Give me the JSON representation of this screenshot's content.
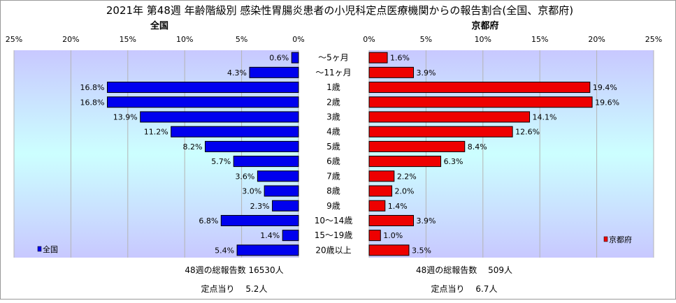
{
  "chart_data": {
    "type": "bar",
    "title": "2021年 第48週 年齢階級別 感染性胃腸炎患者の小児科定点医療機関からの報告割合(全国、京都府)",
    "categories": [
      "～5ヶ月",
      "～11ヶ月",
      "1歳",
      "2歳",
      "3歳",
      "4歳",
      "5歳",
      "6歳",
      "7歳",
      "8歳",
      "9歳",
      "10～14歳",
      "15～19歳",
      "20歳以上"
    ],
    "series": [
      {
        "name": "全国",
        "color": "#0000ee",
        "values": [
          0.6,
          4.3,
          16.8,
          16.8,
          13.9,
          11.2,
          8.2,
          5.7,
          3.6,
          3.0,
          2.3,
          6.8,
          1.4,
          5.4
        ],
        "labels": [
          "0.6%",
          "4.3%",
          "16.8%",
          "16.8%",
          "13.9%",
          "11.2%",
          "8.2%",
          "5.7%",
          "3.6%",
          "3.0%",
          "2.3%",
          "6.8%",
          "1.4%",
          "5.4%"
        ]
      },
      {
        "name": "京都府",
        "color": "#ee0000",
        "values": [
          1.6,
          3.9,
          19.4,
          19.6,
          14.1,
          12.6,
          8.4,
          6.3,
          2.2,
          2.0,
          1.4,
          3.9,
          1.0,
          3.5
        ],
        "labels": [
          "1.6%",
          "3.9%",
          "19.4%",
          "19.6%",
          "14.1%",
          "12.6%",
          "8.4%",
          "6.3%",
          "2.2%",
          "2.0%",
          "1.4%",
          "3.9%",
          "1.0%",
          "3.5%"
        ]
      }
    ],
    "panels": [
      {
        "title": "全国",
        "orientation": "reversed"
      },
      {
        "title": "京都府",
        "orientation": "normal"
      }
    ],
    "xlim": [
      0,
      25
    ],
    "xticks": [
      25,
      20,
      15,
      10,
      5,
      0
    ],
    "xtick_labels_left": [
      "25%",
      "20%",
      "15%",
      "10%",
      "5%",
      "0%"
    ],
    "xtick_labels_right": [
      "0%",
      "5%",
      "10%",
      "15%",
      "20%",
      "25%"
    ],
    "legend_position": "bottom-left / bottom-right",
    "background_gradient": [
      "#c8c8ff",
      "#ccffff",
      "#c8c8ff"
    ],
    "grid": true
  },
  "footnotes": {
    "left_total": "48週の総報告数 16530人",
    "left_per_site": "定点当り　 5.2人",
    "right_total": "48週の総報告数　 509人",
    "right_per_site": "定点当り　 6.7人"
  }
}
